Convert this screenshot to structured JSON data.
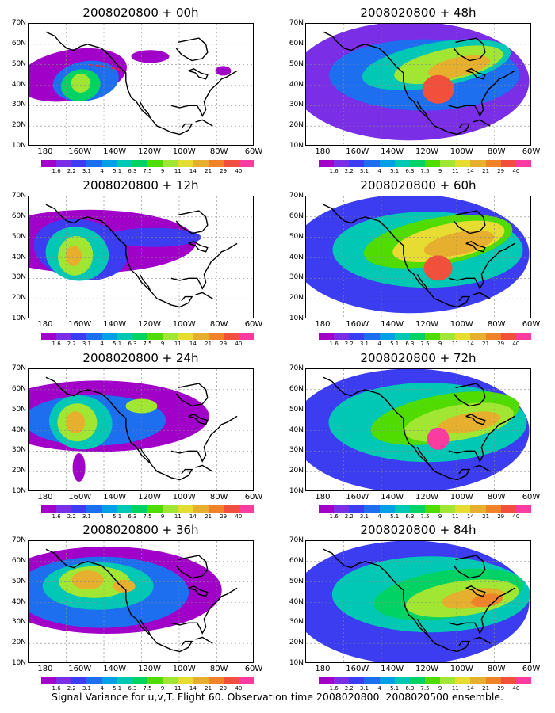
{
  "caption": "Signal Variance for u,v,T. Flight 60. Observation time 2008020800. 2008020500 ensemble.",
  "lat_labels": [
    "70N",
    "60N",
    "50N",
    "40N",
    "30N",
    "20N",
    "10N"
  ],
  "lon_labels": [
    "180",
    "160W",
    "140W",
    "120W",
    "100W",
    "80W",
    "60W"
  ],
  "colorbar": {
    "levels": [
      "1.6",
      "2.2",
      "3.1",
      "4",
      "5.1",
      "6.3",
      "7.5",
      "9",
      "11",
      "14",
      "21",
      "29",
      "40"
    ],
    "colors": [
      "#a000c8",
      "#7a2ee6",
      "#3c3cf0",
      "#1e6ef0",
      "#00a0e6",
      "#00c8b4",
      "#00d264",
      "#50dc00",
      "#a0e632",
      "#e6dc32",
      "#e6af2d",
      "#f08228",
      "#f0503c",
      "#fa3ca0"
    ]
  },
  "panels": [
    {
      "title": "2008020800 + 00h",
      "lead": 0
    },
    {
      "title": "2008020800 + 48h",
      "lead": 48
    },
    {
      "title": "2008020800 + 12h",
      "lead": 12
    },
    {
      "title": "2008020800 + 60h",
      "lead": 60
    },
    {
      "title": "2008020800 + 24h",
      "lead": 24
    },
    {
      "title": "2008020800 + 72h",
      "lead": 72
    },
    {
      "title": "2008020800 + 36h",
      "lead": 36
    },
    {
      "title": "2008020800 + 84h",
      "lead": 84
    }
  ]
}
